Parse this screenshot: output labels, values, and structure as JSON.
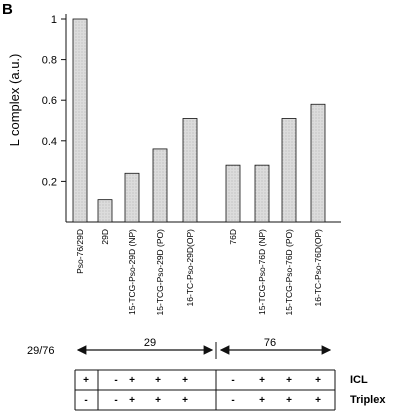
{
  "panel_label": "B",
  "chart_data": {
    "type": "bar",
    "ylabel": "L complex  (a.u.)",
    "ylim": [
      0,
      1
    ],
    "yticks": [
      "0.2",
      "0.4",
      "0.6",
      "0.8",
      "1"
    ],
    "grid": false,
    "categories": [
      "Pso-76/29D",
      "29D",
      "15-TCG-Pso-29D (NP)",
      "15-TCG-Pso-29D (PO)",
      "16-TC-Pso-29D(OP)",
      "76D",
      "15-TCG-Pso-76D (NP)",
      "15-TCG-Pso-76D (PO)",
      "16-TC-Pso-76D(OP)"
    ],
    "values": [
      1.0,
      0.11,
      0.24,
      0.36,
      0.51,
      0.28,
      0.28,
      0.51,
      0.58
    ],
    "bar_color": "#d4d4d4"
  },
  "groups": {
    "left_label": "29/76",
    "group1_label": "29",
    "group2_label": "76"
  },
  "table": {
    "rows": [
      {
        "label": "ICL",
        "values": [
          "+",
          "-",
          "+",
          "+",
          "+",
          "-",
          "+",
          "+",
          "+"
        ]
      },
      {
        "label": "Triplex",
        "values": [
          "-",
          "-",
          "+",
          "+",
          "+",
          "-",
          "+",
          "+",
          "+"
        ]
      }
    ]
  }
}
